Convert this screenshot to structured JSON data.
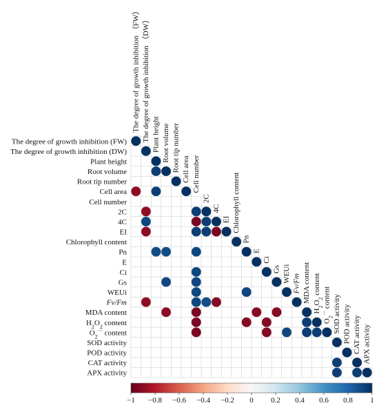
{
  "chart_data": {
    "type": "heatmap",
    "variables": [
      "The degree of growth  inhibition (FW)",
      "The degree of growth  inhibition (DW)",
      "Plant height",
      "Root volume",
      "Root tip number",
      "Cell area",
      "Cell number",
      "2C",
      "4C",
      "EI",
      "Chlorophyll content",
      "Pn",
      "E",
      "Ci",
      "Gs",
      "WEUi",
      "Fv/Fm",
      "MDA content",
      "H2O2 content",
      "O2·− content",
      "SOD activity",
      "POD activity",
      "CAT activity",
      "APX activity"
    ],
    "top_labels": [
      "The degree of growth  inhibition （FW）",
      "The degree of growth  inhibition （DW）",
      "Plant height",
      "Root volume",
      "Root tip number",
      "Cell area",
      "Cell number",
      "2C",
      "4C",
      "EI",
      "Chlorophyll content",
      "Pn",
      "E",
      "Ci",
      "Gs",
      "WEUi",
      "Fv/Fm",
      "MDA content",
      "H2O2 content",
      "O2·− content",
      "SOD activity",
      "POD activity",
      "CAT activity",
      "APX activity"
    ],
    "significant_correlations": [
      {
        "row": 0,
        "col": 0,
        "r": 1
      },
      {
        "row": 1,
        "col": 1,
        "r": 1
      },
      {
        "row": 2,
        "col": 2,
        "r": 1
      },
      {
        "row": 3,
        "col": 2,
        "r": 0.95
      },
      {
        "row": 3,
        "col": 3,
        "r": 1
      },
      {
        "row": 4,
        "col": 4,
        "r": 1
      },
      {
        "row": 5,
        "col": 0,
        "r": -0.9
      },
      {
        "row": 5,
        "col": 2,
        "r": 0.95
      },
      {
        "row": 5,
        "col": 5,
        "r": 1
      },
      {
        "row": 7,
        "col": 1,
        "r": -0.9
      },
      {
        "row": 7,
        "col": 6,
        "r": 0.95
      },
      {
        "row": 7,
        "col": 7,
        "r": 1
      },
      {
        "row": 8,
        "col": 1,
        "r": 0.92
      },
      {
        "row": 8,
        "col": 6,
        "r": -0.95
      },
      {
        "row": 8,
        "col": 7,
        "r": 0.95
      },
      {
        "row": 8,
        "col": 8,
        "r": 1
      },
      {
        "row": 9,
        "col": 1,
        "r": -0.9
      },
      {
        "row": 9,
        "col": 6,
        "r": 0.95
      },
      {
        "row": 9,
        "col": 7,
        "r": 0.95
      },
      {
        "row": 9,
        "col": 8,
        "r": -0.95
      },
      {
        "row": 9,
        "col": 9,
        "r": 1
      },
      {
        "row": 10,
        "col": 10,
        "r": 1
      },
      {
        "row": 11,
        "col": 2,
        "r": 0.9
      },
      {
        "row": 11,
        "col": 3,
        "r": 0.9
      },
      {
        "row": 11,
        "col": 6,
        "r": 0.92
      },
      {
        "row": 11,
        "col": 11,
        "r": 1
      },
      {
        "row": 12,
        "col": 12,
        "r": 1
      },
      {
        "row": 13,
        "col": 6,
        "r": 0.92
      },
      {
        "row": 13,
        "col": 13,
        "r": 1
      },
      {
        "row": 14,
        "col": 3,
        "r": 0.92
      },
      {
        "row": 14,
        "col": 6,
        "r": 0.92
      },
      {
        "row": 14,
        "col": 14,
        "r": 1
      },
      {
        "row": 15,
        "col": 6,
        "r": 0.92
      },
      {
        "row": 15,
        "col": 11,
        "r": 0.92
      },
      {
        "row": 15,
        "col": 15,
        "r": 1
      },
      {
        "row": 16,
        "col": 1,
        "r": -0.9
      },
      {
        "row": 16,
        "col": 6,
        "r": 0.92
      },
      {
        "row": 16,
        "col": 7,
        "r": 0.9
      },
      {
        "row": 16,
        "col": 8,
        "r": -0.92
      },
      {
        "row": 16,
        "col": 16,
        "r": 1
      },
      {
        "row": 17,
        "col": 3,
        "r": -0.9
      },
      {
        "row": 17,
        "col": 6,
        "r": -0.95
      },
      {
        "row": 17,
        "col": 12,
        "r": -0.92
      },
      {
        "row": 17,
        "col": 14,
        "r": -0.92
      },
      {
        "row": 17,
        "col": 17,
        "r": 1
      },
      {
        "row": 18,
        "col": 6,
        "r": -0.95
      },
      {
        "row": 18,
        "col": 11,
        "r": -0.92
      },
      {
        "row": 18,
        "col": 13,
        "r": -0.92
      },
      {
        "row": 18,
        "col": 17,
        "r": 0.95
      },
      {
        "row": 18,
        "col": 18,
        "r": 1
      },
      {
        "row": 19,
        "col": 6,
        "r": -0.95
      },
      {
        "row": 19,
        "col": 13,
        "r": -0.92
      },
      {
        "row": 19,
        "col": 15,
        "r": 0.92
      },
      {
        "row": 19,
        "col": 17,
        "r": 0.95
      },
      {
        "row": 19,
        "col": 18,
        "r": 0.95
      },
      {
        "row": 19,
        "col": 19,
        "r": 1
      },
      {
        "row": 20,
        "col": 20,
        "r": 1
      },
      {
        "row": 21,
        "col": 21,
        "r": 1
      },
      {
        "row": 22,
        "col": 20,
        "r": 0.95
      },
      {
        "row": 22,
        "col": 22,
        "r": 1
      },
      {
        "row": 23,
        "col": 20,
        "r": 0.95
      },
      {
        "row": 23,
        "col": 22,
        "r": 0.95
      },
      {
        "row": 23,
        "col": 23,
        "r": 1
      }
    ],
    "colorbar": {
      "range": [
        -1,
        1
      ],
      "ticks": [
        "−1",
        "−0.8",
        "−0.6",
        "−0.4",
        "−0.2",
        "0",
        "0.2",
        "0.4",
        "0.6",
        "0.8",
        "1"
      ],
      "colors": {
        "negative": "#67001f",
        "neutral": "#f7f7f7",
        "positive": "#053061"
      }
    }
  }
}
